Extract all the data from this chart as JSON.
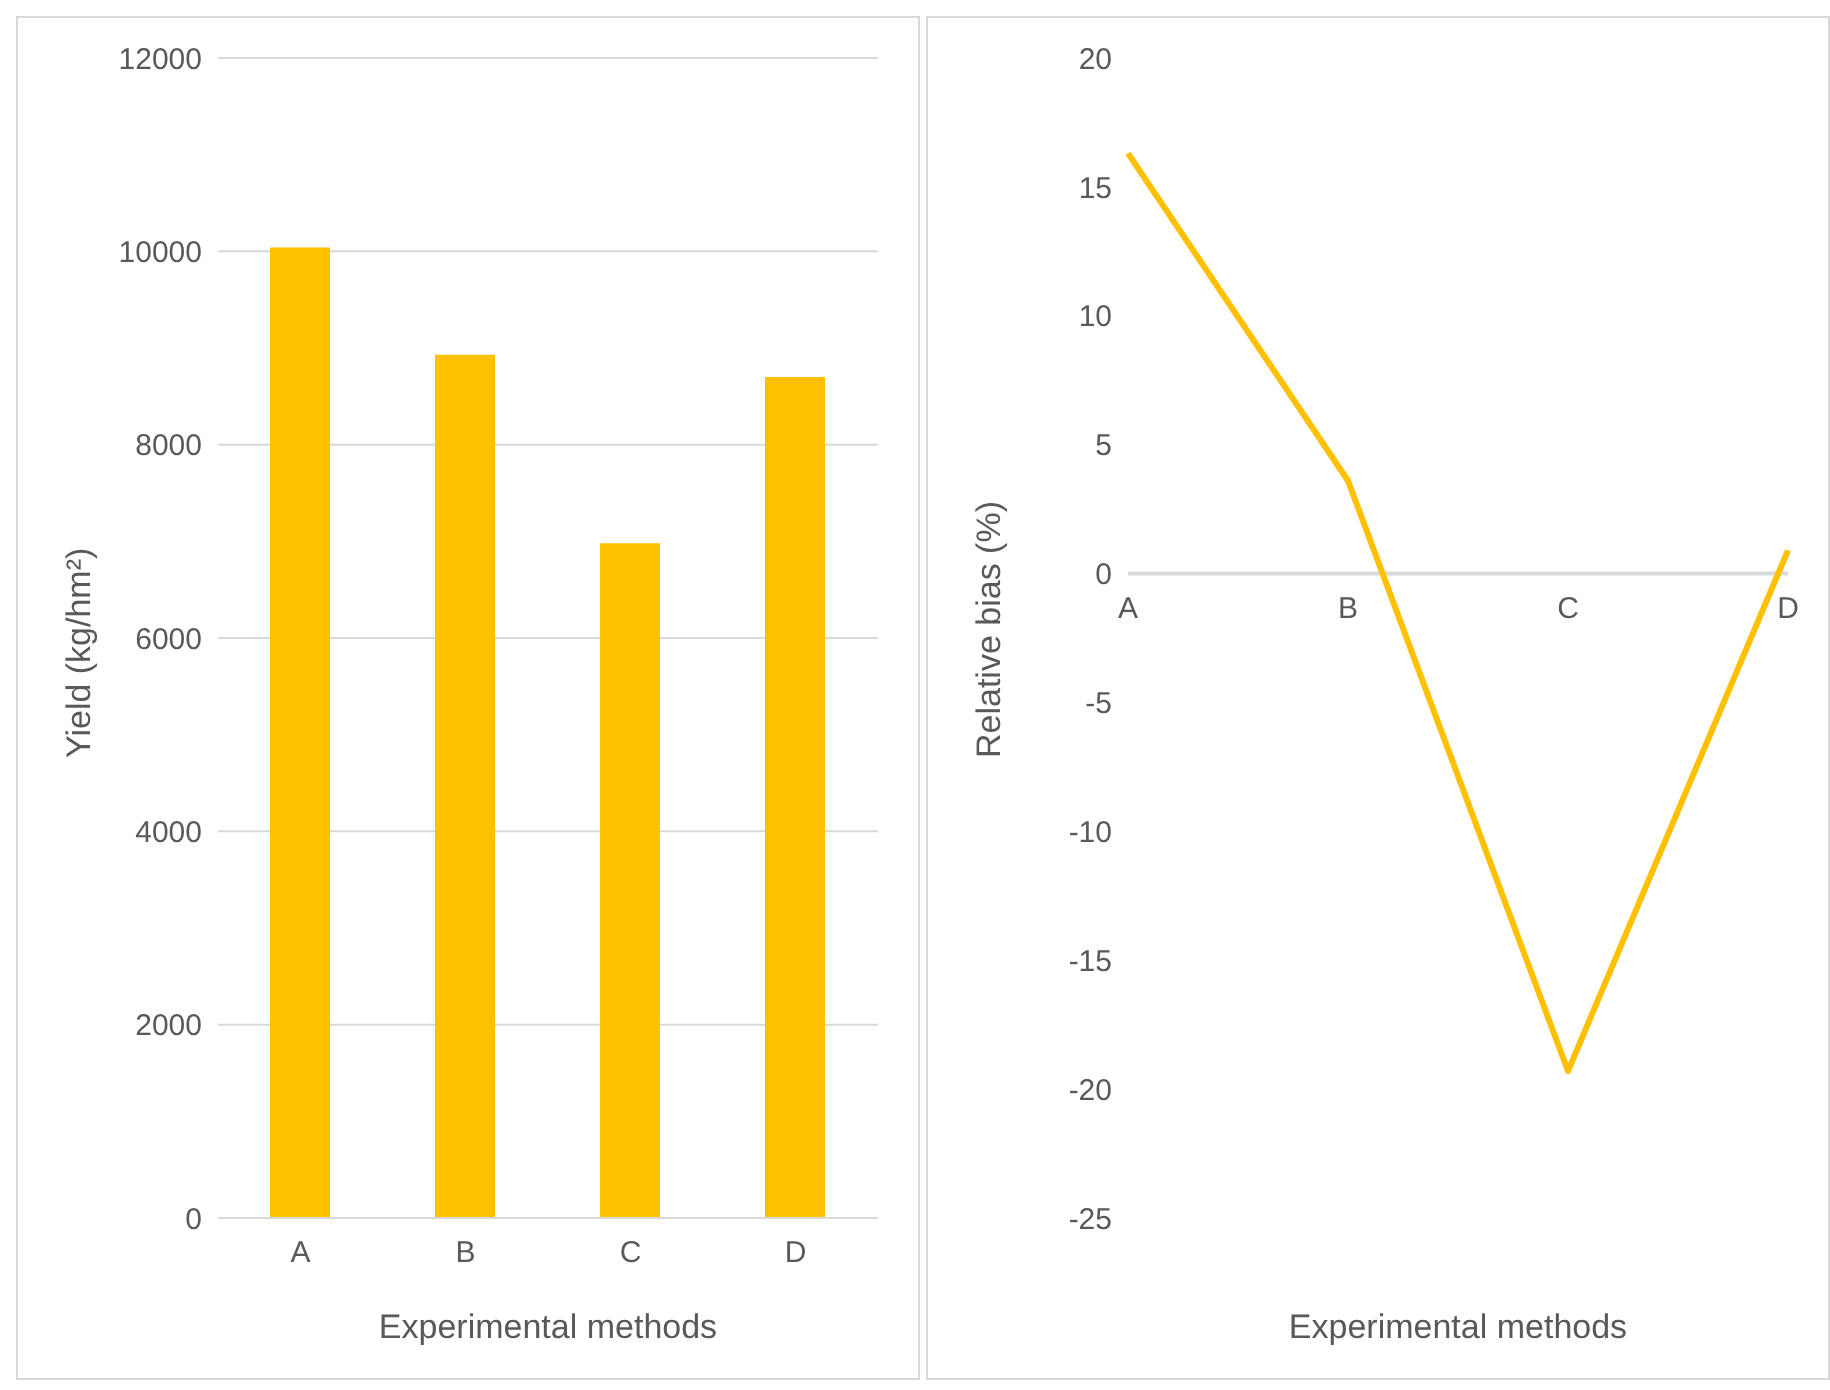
{
  "chart_data": [
    {
      "type": "bar",
      "xlabel": "Experimental methods",
      "ylabel": "Yield (kg/hm²)",
      "categories": [
        "A",
        "B",
        "C",
        "D"
      ],
      "values": [
        10040,
        8930,
        6980,
        8700
      ],
      "color": "#ffc000",
      "ylim": [
        0,
        12000
      ],
      "yticks": [
        0,
        2000,
        4000,
        6000,
        8000,
        10000,
        12000
      ],
      "grid": "y"
    },
    {
      "type": "line",
      "xlabel": "Experimental methods",
      "ylabel": "Relative bias (%)",
      "categories": [
        "A",
        "B",
        "C",
        "D"
      ],
      "values": [
        16.3,
        3.6,
        -19.3,
        0.9
      ],
      "color": "#ffc000",
      "ylim": [
        -25,
        20
      ],
      "yticks": [
        -25,
        -20,
        -15,
        -10,
        -5,
        0,
        5,
        10,
        15,
        20
      ],
      "marker": "none"
    }
  ]
}
